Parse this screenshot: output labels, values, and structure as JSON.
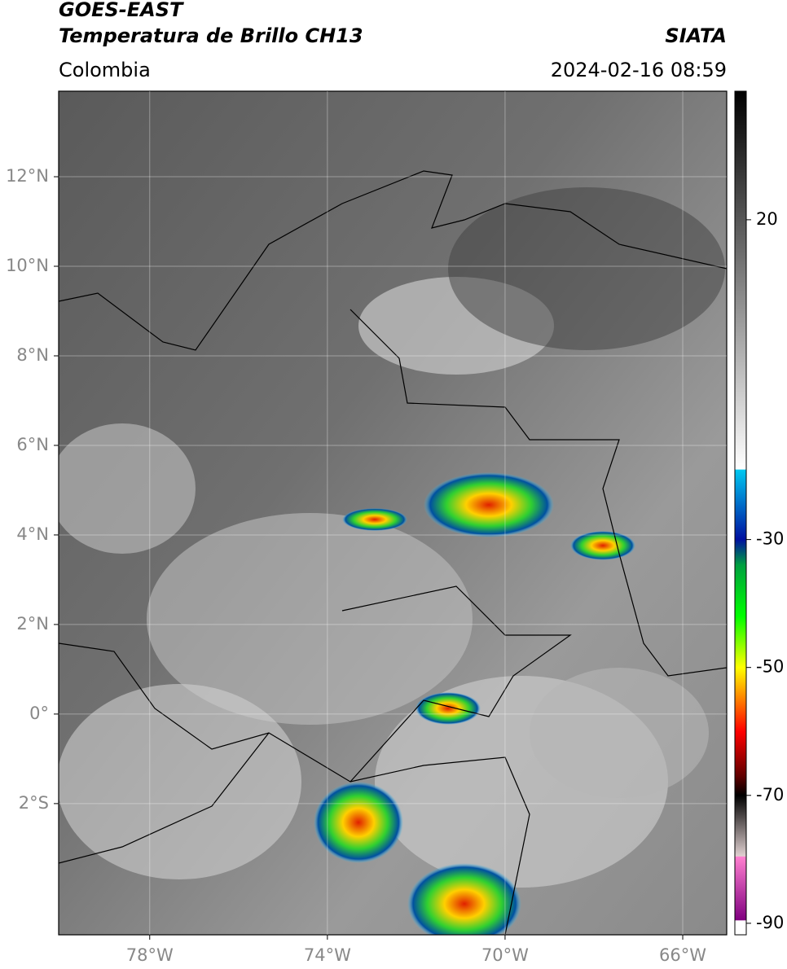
{
  "header": {
    "title": "GOES-EAST",
    "subtitle": "Temperatura de Brillo CH13",
    "source": "SIATA",
    "region": "Colombia",
    "datetime": "2024-02-16 08:59"
  },
  "map": {
    "xlim": [
      -80.05,
      -65.01
    ],
    "ylim": [
      -4.93,
      13.91
    ],
    "yticks": [
      {
        "value": 12,
        "label": "12°N"
      },
      {
        "value": 10,
        "label": "10°N"
      },
      {
        "value": 8,
        "label": "8°N"
      },
      {
        "value": 6,
        "label": "6°N"
      },
      {
        "value": 4,
        "label": "4°N"
      },
      {
        "value": 2,
        "label": "2°N"
      },
      {
        "value": 0,
        "label": "0°"
      },
      {
        "value": -2,
        "label": "2°S"
      }
    ],
    "xticks": [
      {
        "value": -78,
        "label": "78°W"
      },
      {
        "value": -74,
        "label": "74°W"
      },
      {
        "value": -70,
        "label": "70°W"
      },
      {
        "value": -66,
        "label": "66°W"
      }
    ],
    "grid": true
  },
  "colorbar": {
    "lim": [
      -91.8,
      40.1
    ],
    "ticks": [
      20,
      -30,
      -50,
      -70,
      -90
    ],
    "colormap": [
      {
        "value": 40.1,
        "color": "#000000"
      },
      {
        "value": -19,
        "color": "#ffffff"
      },
      {
        "value": -19.1,
        "color": "#00c8f0"
      },
      {
        "value": -30,
        "color": "#0010a0"
      },
      {
        "value": -34,
        "color": "#00a040"
      },
      {
        "value": -42,
        "color": "#00ff00"
      },
      {
        "value": -50,
        "color": "#ffff00"
      },
      {
        "value": -55,
        "color": "#ff8000"
      },
      {
        "value": -60,
        "color": "#ff0000"
      },
      {
        "value": -67,
        "color": "#600000"
      },
      {
        "value": -70,
        "color": "#000000"
      },
      {
        "value": -79.5,
        "color": "#e0d0d0"
      },
      {
        "value": -79.6,
        "color": "#ff80d0"
      },
      {
        "value": -89.5,
        "color": "#800080"
      },
      {
        "value": -89.6,
        "color": "#ffffff"
      }
    ]
  }
}
